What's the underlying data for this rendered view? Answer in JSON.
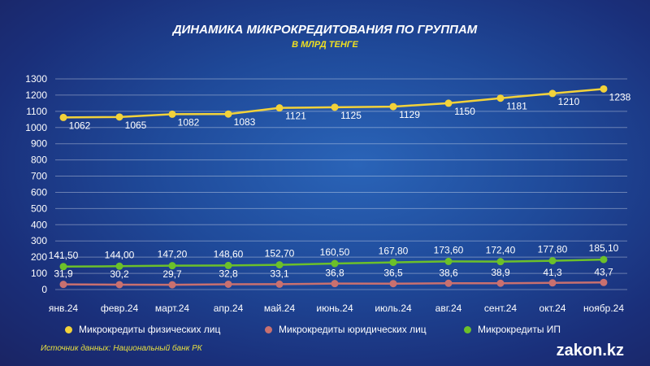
{
  "chart_data": {
    "type": "line",
    "title": "ДИНАМИКА МИКРОКРЕДИТОВАНИЯ ПО ГРУППАМ",
    "subtitle": "В МЛРД ТЕНГЕ",
    "categories": [
      "янв.24",
      "февр.24",
      "март.24",
      "апр.24",
      "май.24",
      "июнь.24",
      "июль.24",
      "авг.24",
      "сент.24",
      "окт.24",
      "ноябр.24"
    ],
    "ylim": [
      0,
      1300
    ],
    "yticks": [
      "0",
      "100",
      "200",
      "300",
      "400",
      "500",
      "600",
      "700",
      "800",
      "900",
      "1000",
      "1100",
      "1200",
      "1300"
    ],
    "grid": true,
    "legend_position": "bottom",
    "series": [
      {
        "name": "Микрокредиты физических лиц",
        "color": "#f2d23a",
        "values": [
          1062,
          1065,
          1082,
          1083,
          1121,
          1125,
          1129,
          1150,
          1181,
          1210,
          1238
        ],
        "labels": [
          "1062",
          "1065",
          "1082",
          "1083",
          "1121",
          "1125",
          "1129",
          "1150",
          "1181",
          "1210",
          "1238"
        ]
      },
      {
        "name": "Микрокредиты юридических лиц",
        "color": "#c9706f",
        "values": [
          31.9,
          30.2,
          29.7,
          32.8,
          33.1,
          36.8,
          36.5,
          38.6,
          38.9,
          41.3,
          43.7
        ],
        "labels": [
          "31,9",
          "30,2",
          "29,7",
          "32,8",
          "33,1",
          "36,8",
          "36,5",
          "38,6",
          "38,9",
          "41,3",
          "43,7"
        ]
      },
      {
        "name": "Микрокредиты ИП",
        "color": "#6cc02a",
        "values": [
          141.5,
          144.0,
          147.2,
          148.6,
          152.7,
          160.5,
          167.8,
          173.6,
          172.4,
          177.8,
          185.1
        ],
        "labels": [
          "141,50",
          "144,00",
          "147,20",
          "148,60",
          "152,70",
          "160,50",
          "167,80",
          "173,60",
          "172,40",
          "177,80",
          "185,10"
        ]
      }
    ]
  },
  "source": "Источник данных: Национальный банк РК",
  "logo": "zakon.kz"
}
